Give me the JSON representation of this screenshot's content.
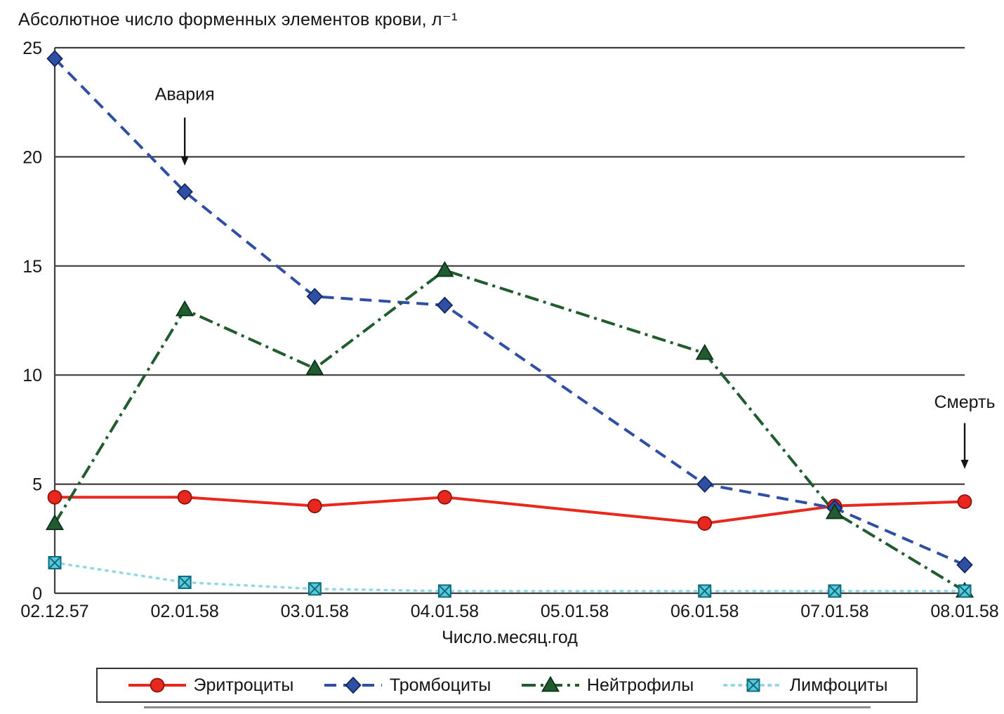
{
  "chart_data": {
    "type": "line",
    "title": "Абсолютное число форменных элементов крови, л⁻¹",
    "xlabel": "Число.месяц.год",
    "ylabel": "",
    "ylim": [
      0,
      25
    ],
    "yticks": [
      0,
      5,
      10,
      15,
      20,
      25
    ],
    "grid": "horizontal",
    "legend_position": "bottom",
    "categories": [
      "02.12.57",
      "02.01.58",
      "03.01.58",
      "04.01.58",
      "05.01.58",
      "06.01.58",
      "07.01.58",
      "08.01.58"
    ],
    "series": [
      {
        "name": "Эритроциты",
        "marker": "circle",
        "line": "solid",
        "color": "#e8281e",
        "marker_fill": "#e8281e",
        "marker_edge": "#8f120c",
        "values": [
          4.4,
          4.4,
          4.0,
          4.4,
          null,
          3.2,
          4.0,
          4.2
        ]
      },
      {
        "name": "Тромбоциты",
        "marker": "diamond",
        "line": "dashed",
        "color": "#2e4fa3",
        "marker_fill": "#2e4fa3",
        "marker_edge": "#16265e",
        "values": [
          24.5,
          18.4,
          13.6,
          13.2,
          null,
          5.0,
          3.9,
          1.3
        ]
      },
      {
        "name": "Нейтрофилы",
        "marker": "triangle",
        "line": "dashdot",
        "color": "#205c2f",
        "marker_fill": "#205c2f",
        "marker_edge": "#0c3318",
        "values": [
          3.2,
          13.0,
          10.3,
          14.8,
          null,
          11.0,
          3.7,
          0.1
        ]
      },
      {
        "name": "Лимфоциты",
        "marker": "xsquare",
        "line": "dotted",
        "color": "#8fd9e6",
        "marker_fill": "#5fc8d6",
        "marker_edge": "#0b6d80",
        "values": [
          1.4,
          0.5,
          0.2,
          0.1,
          null,
          0.1,
          0.1,
          0.1
        ]
      }
    ],
    "annotations": [
      {
        "text": "Авария",
        "category": "02.01.58",
        "text_y": 22.6,
        "arrow_from_y": 21.8,
        "arrow_to_y": 19.6
      },
      {
        "text": "Смерть",
        "category": "08.01.58",
        "text_y": 8.5,
        "arrow_from_y": 7.8,
        "arrow_to_y": 5.7
      }
    ]
  }
}
